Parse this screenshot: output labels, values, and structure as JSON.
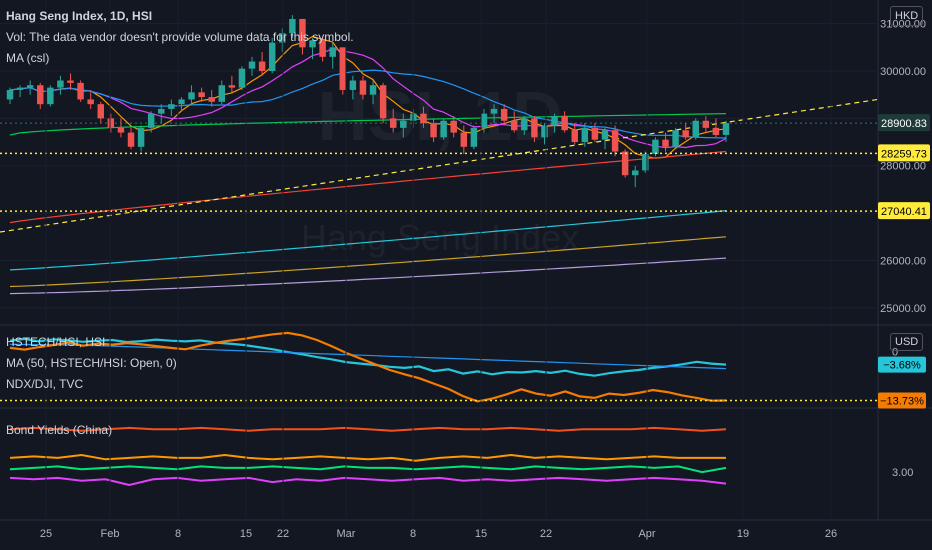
{
  "header": {
    "symbol_line": "Hang Seng Index, 1D, HSI",
    "vol_line": "Vol: The data vendor doesn't provide volume data for this symbol.",
    "ma_line": "MA (csl)",
    "currency": "HKD",
    "watermark_ticker": "HSI, 1D",
    "watermark_name": "Hang Seng Index"
  },
  "pane2": {
    "legend1": "HSTECH/HSI, HSI",
    "legend2": "MA (50, HSTECH/HSI: Open, 0)",
    "legend3": "NDX/DJI, TVC",
    "currency": "USD"
  },
  "pane3": {
    "legend1": "Bond Yields (China)"
  },
  "colors": {
    "background": "#131722",
    "up": "#26a69a",
    "down": "#ef5350",
    "yellow_line": "#ffeb3b",
    "cyan": "#26c6da",
    "orange": "#f57c00",
    "green": "#00e676",
    "magenta": "#e040fb",
    "red": "#f44336",
    "blue": "#2962ff"
  },
  "chart_data": [
    {
      "type": "candlestick",
      "title": "Hang Seng Index, 1D, HSI",
      "y_ticks": [
        25000,
        26000,
        27000,
        28000,
        29000,
        30000,
        31000
      ],
      "ylim": [
        24700,
        31500
      ],
      "x_ticks": [
        "25",
        "Feb",
        "8",
        "15",
        "22",
        "Mar",
        "8",
        "15",
        "22",
        "Apr",
        "19",
        "26"
      ],
      "price_labels": [
        {
          "value": "28900.83",
          "kind": "last"
        },
        {
          "value": "28259.73",
          "kind": "level"
        },
        {
          "value": "27040.41",
          "kind": "level"
        }
      ],
      "candles": [
        [
          29400,
          29650,
          29300,
          29600
        ],
        [
          29600,
          29700,
          29450,
          29650
        ],
        [
          29650,
          29800,
          29500,
          29700
        ],
        [
          29700,
          29750,
          29200,
          29300
        ],
        [
          29300,
          29700,
          29250,
          29650
        ],
        [
          29650,
          29900,
          29500,
          29800
        ],
        [
          29800,
          29950,
          29600,
          29750
        ],
        [
          29750,
          29800,
          29350,
          29400
        ],
        [
          29400,
          29550,
          29200,
          29300
        ],
        [
          29300,
          29350,
          28900,
          29000
        ],
        [
          29000,
          29100,
          28700,
          28800
        ],
        [
          28800,
          29000,
          28600,
          28700
        ],
        [
          28700,
          28800,
          28350,
          28400
        ],
        [
          28400,
          28850,
          28300,
          28800
        ],
        [
          28800,
          29150,
          28700,
          29100
        ],
        [
          29100,
          29300,
          28900,
          29200
        ],
        [
          29200,
          29400,
          29050,
          29300
        ],
        [
          29300,
          29450,
          29150,
          29400
        ],
        [
          29400,
          29700,
          29300,
          29550
        ],
        [
          29550,
          29650,
          29350,
          29450
        ],
        [
          29450,
          29600,
          29250,
          29350
        ],
        [
          29350,
          29800,
          29300,
          29700
        ],
        [
          29700,
          29900,
          29550,
          29650
        ],
        [
          29650,
          30100,
          29600,
          30050
        ],
        [
          30050,
          30300,
          29900,
          30200
        ],
        [
          30200,
          30400,
          29900,
          30000
        ],
        [
          30000,
          30700,
          29950,
          30600
        ],
        [
          30600,
          30900,
          30400,
          30800
        ],
        [
          30800,
          31180,
          30700,
          31100
        ],
        [
          31100,
          31100,
          30350,
          30500
        ],
        [
          30500,
          30700,
          30250,
          30650
        ],
        [
          30650,
          30700,
          30200,
          30300
        ],
        [
          30300,
          30600,
          30050,
          30500
        ],
        [
          30500,
          30500,
          29500,
          29600
        ],
        [
          29600,
          29900,
          29400,
          29800
        ],
        [
          29800,
          29900,
          29400,
          29500
        ],
        [
          29500,
          29800,
          29300,
          29700
        ],
        [
          29700,
          29750,
          28900,
          29000
        ],
        [
          29000,
          29200,
          28700,
          28800
        ],
        [
          28800,
          29100,
          28600,
          28950
        ],
        [
          28950,
          29200,
          28800,
          29100
        ],
        [
          29100,
          29250,
          28800,
          28900
        ],
        [
          28900,
          29000,
          28500,
          28600
        ],
        [
          28600,
          29000,
          28550,
          28950
        ],
        [
          28950,
          29050,
          28600,
          28700
        ],
        [
          28700,
          28850,
          28250,
          28400
        ],
        [
          28400,
          28850,
          28350,
          28800
        ],
        [
          28800,
          29200,
          28700,
          29100
        ],
        [
          29100,
          29300,
          28900,
          29200
        ],
        [
          29200,
          29300,
          28850,
          28950
        ],
        [
          28950,
          29150,
          28700,
          28750
        ],
        [
          28750,
          29050,
          28650,
          29000
        ],
        [
          29000,
          29050,
          28500,
          28600
        ],
        [
          28600,
          28900,
          28450,
          28850
        ],
        [
          28850,
          29100,
          28700,
          29050
        ],
        [
          29050,
          29150,
          28700,
          28750
        ],
        [
          28750,
          28900,
          28450,
          28500
        ],
        [
          28500,
          28900,
          28400,
          28800
        ],
        [
          28800,
          28900,
          28500,
          28550
        ],
        [
          28550,
          28800,
          28350,
          28750
        ],
        [
          28750,
          28850,
          28200,
          28300
        ],
        [
          28300,
          28350,
          27750,
          27800
        ],
        [
          27800,
          28000,
          27550,
          27900
        ],
        [
          27900,
          28300,
          27850,
          28250
        ],
        [
          28250,
          28600,
          28200,
          28550
        ],
        [
          28550,
          28700,
          28300,
          28400
        ],
        [
          28400,
          28800,
          28350,
          28750
        ],
        [
          28750,
          28900,
          28550,
          28600
        ],
        [
          28600,
          29000,
          28550,
          28950
        ],
        [
          28950,
          29050,
          28700,
          28800
        ],
        [
          28800,
          29000,
          28600,
          28650
        ],
        [
          28650,
          28950,
          28500,
          28900
        ]
      ]
    },
    {
      "type": "line",
      "title": "HSTECH/HSI, HSI vs NDX/DJI, TVC",
      "currency": "USD",
      "y_ticks": [
        "0"
      ],
      "price_labels": [
        {
          "value": "−3.68%",
          "series": "HSTECH/HSI, HSI"
        },
        {
          "value": "−13.73%",
          "series": "NDX/DJI, TVC"
        }
      ],
      "series": [
        {
          "name": "HSTECH/HSI, HSI",
          "values": [
            3,
            3.5,
            2.8,
            3.4,
            3.1,
            2.7,
            3.0,
            3.2,
            2.6,
            2.9,
            3.3,
            3.0,
            2.8,
            3.1,
            2.5,
            2.2,
            1.8,
            1.2,
            0.6,
            -0.2,
            -0.8,
            -1.6,
            -2.2,
            -3.0,
            -3.4,
            -3.8,
            -4.3,
            -4.6,
            -4.2,
            -5.5,
            -5.0,
            -6.2,
            -5.6,
            -6.4,
            -5.8,
            -5.9,
            -5.5,
            -6.0,
            -5.4,
            -6.3,
            -6.8,
            -6.1,
            -5.6,
            -5.2,
            -4.6,
            -4.2,
            -3.6,
            -2.9,
            -3.4,
            -3.68
          ]
        },
        {
          "name": "MA (50, HSTECH/HSI: Open, 0)",
          "values": [
            2.0,
            1.95,
            1.9,
            1.85,
            1.8,
            1.7,
            1.6,
            1.5,
            1.35,
            1.2,
            1.05,
            0.9,
            0.75,
            0.6,
            0.45,
            0.3,
            0.15,
            0.0,
            -0.15,
            -0.3,
            -0.45,
            -0.6,
            -0.75,
            -0.9,
            -1.05,
            -1.2,
            -1.35,
            -1.5,
            -1.65,
            -1.8,
            -1.95,
            -2.1,
            -2.25,
            -2.4,
            -2.55,
            -2.7,
            -2.85,
            -3.0,
            -3.15,
            -3.3,
            -3.45,
            -3.6,
            -3.75,
            -3.9,
            -4.05,
            -4.2,
            -4.35,
            -4.5,
            -4.65,
            -4.8
          ]
        },
        {
          "name": "NDX/DJI, TVC",
          "values": [
            1.0,
            0.5,
            1.2,
            1.8,
            2.5,
            1.6,
            2.2,
            1.9,
            2.3,
            2.0,
            1.5,
            1.0,
            0.6,
            1.6,
            2.4,
            3.0,
            3.5,
            4.2,
            4.8,
            5.2,
            4.5,
            3.2,
            1.5,
            -0.4,
            -2.0,
            -3.6,
            -5.2,
            -6.4,
            -7.5,
            -9.0,
            -10.5,
            -12.5,
            -14.0,
            -13.2,
            -12.0,
            -10.6,
            -11.8,
            -12.4,
            -11.2,
            -12.6,
            -13.0,
            -11.8,
            -12.2,
            -11.6,
            -10.8,
            -11.4,
            -12.3,
            -13.0,
            -13.8,
            -13.73
          ]
        }
      ]
    },
    {
      "type": "line",
      "title": "Bond Yields (China)",
      "y_ticks": [
        "3.00"
      ],
      "series_colors": [
        "red",
        "orange",
        "green",
        "magenta"
      ],
      "series": [
        {
          "values": [
            3.3,
            3.31,
            3.3,
            3.29,
            3.3,
            3.31,
            3.3,
            3.3,
            3.31,
            3.3,
            3.29,
            3.3,
            3.3,
            3.3,
            3.31,
            3.3,
            3.29,
            3.3,
            3.31,
            3.3,
            3.3,
            3.31,
            3.3,
            3.29,
            3.3,
            3.3,
            3.3,
            3.31,
            3.3,
            3.29,
            3.3
          ]
        },
        {
          "values": [
            3.1,
            3.11,
            3.1,
            3.12,
            3.09,
            3.1,
            3.11,
            3.1,
            3.1,
            3.12,
            3.1,
            3.09,
            3.1,
            3.11,
            3.1,
            3.09,
            3.1,
            3.08,
            3.1,
            3.11,
            3.1,
            3.12,
            3.1,
            3.11,
            3.1,
            3.09,
            3.1,
            3.11,
            3.1,
            3.1,
            3.1
          ]
        },
        {
          "values": [
            3.02,
            3.03,
            3.04,
            3.02,
            3.03,
            3.04,
            3.03,
            3.02,
            3.04,
            3.03,
            3.03,
            3.04,
            3.03,
            3.02,
            3.04,
            3.03,
            3.03,
            3.02,
            3.03,
            3.04,
            3.03,
            3.02,
            3.04,
            3.03,
            3.02,
            3.03,
            3.04,
            3.03,
            3.04,
            3.0,
            3.03
          ]
        },
        {
          "values": [
            2.96,
            2.95,
            2.96,
            2.94,
            2.95,
            2.91,
            2.95,
            2.96,
            2.94,
            2.95,
            2.96,
            2.93,
            2.95,
            2.94,
            2.96,
            2.95,
            2.94,
            2.95,
            2.96,
            2.94,
            2.95,
            2.94,
            2.95,
            2.96,
            2.95,
            2.94,
            2.95,
            2.96,
            2.95,
            2.94,
            2.92
          ]
        }
      ]
    }
  ]
}
